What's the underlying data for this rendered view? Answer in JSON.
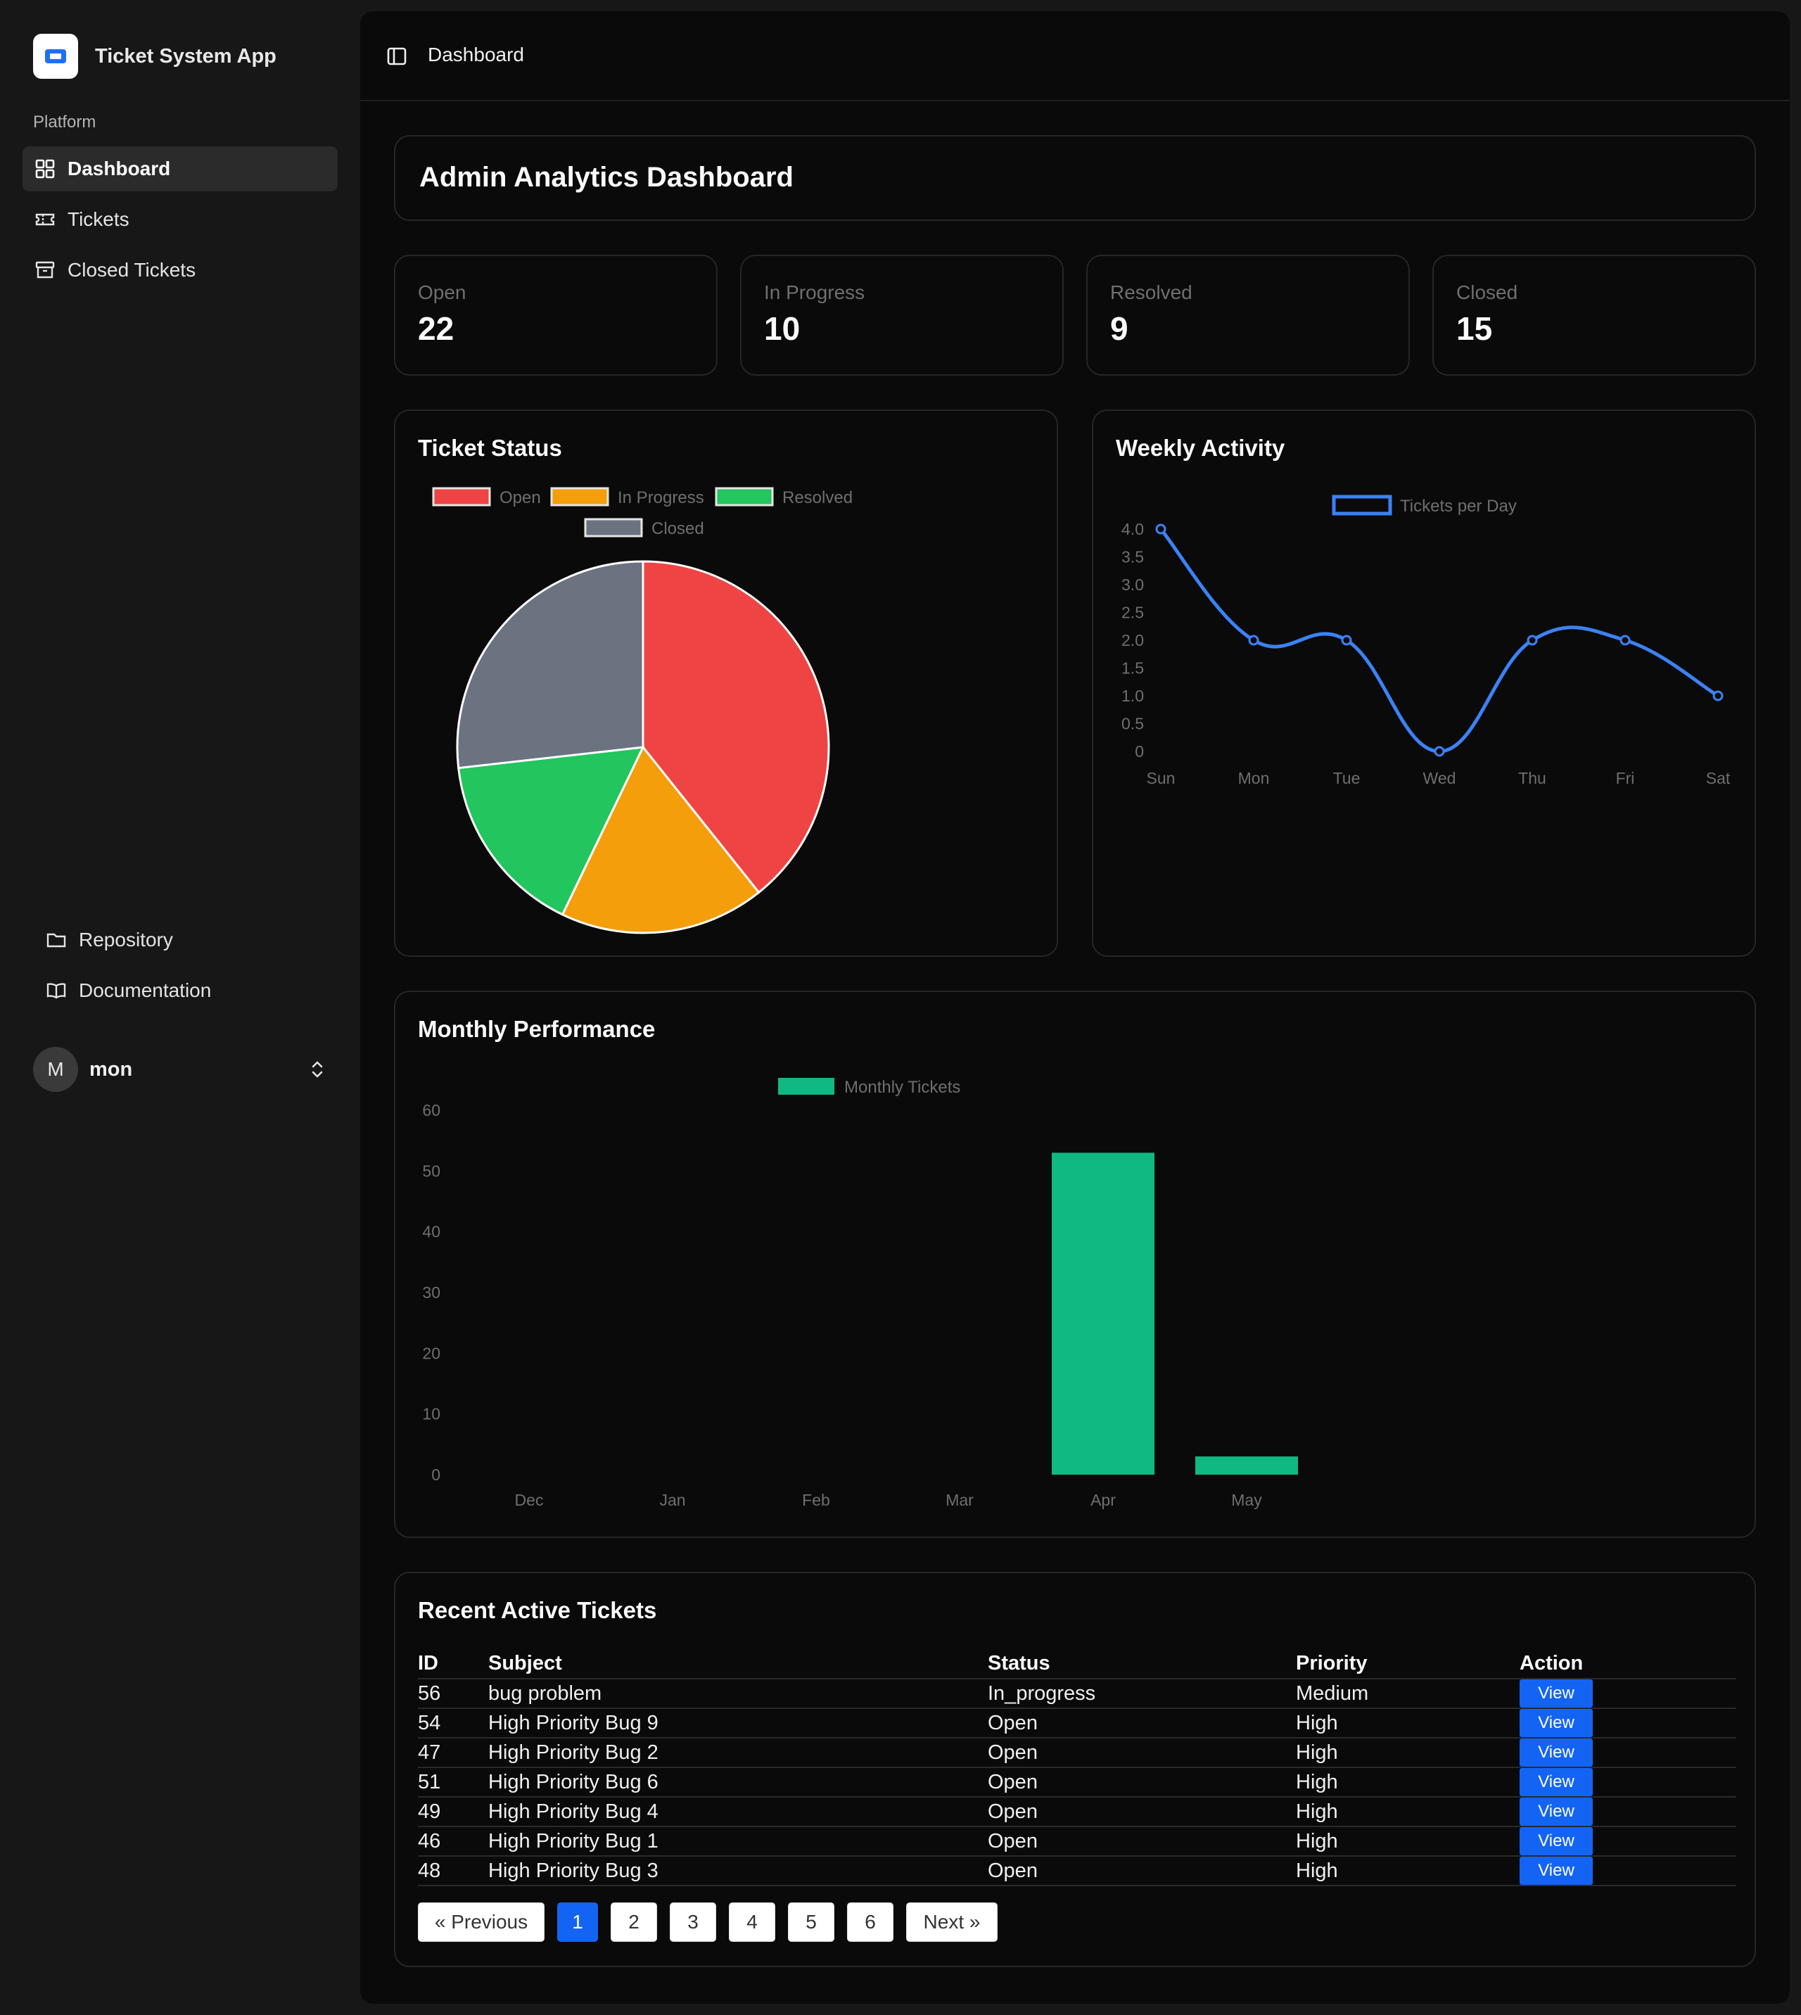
{
  "app": {
    "name": "Ticket System App"
  },
  "sidebar": {
    "section_label": "Platform",
    "items": [
      {
        "label": "Dashboard",
        "icon": "grid-icon",
        "active": true
      },
      {
        "label": "Tickets",
        "icon": "ticket-icon",
        "active": false
      },
      {
        "label": "Closed Tickets",
        "icon": "archive-icon",
        "active": false
      }
    ],
    "secondary": [
      {
        "label": "Repository",
        "icon": "folder-icon"
      },
      {
        "label": "Documentation",
        "icon": "book-icon"
      }
    ],
    "user": {
      "initial": "M",
      "name": "mon"
    }
  },
  "topbar": {
    "breadcrumb": "Dashboard"
  },
  "page": {
    "title": "Admin Analytics Dashboard"
  },
  "stats": [
    {
      "label": "Open",
      "value": "22"
    },
    {
      "label": "In Progress",
      "value": "10"
    },
    {
      "label": "Resolved",
      "value": "9"
    },
    {
      "label": "Closed",
      "value": "15"
    }
  ],
  "colors": {
    "open": "#ef4444",
    "in_progress": "#f59e0b",
    "resolved": "#22c55e",
    "closed": "#6b7280",
    "line": "#3b82f6",
    "bar": "#10b981",
    "accent": "#1464f4"
  },
  "chart_data": [
    {
      "type": "pie",
      "title": "Ticket Status",
      "categories": [
        "Open",
        "In Progress",
        "Resolved",
        "Closed"
      ],
      "values": [
        22,
        10,
        9,
        15
      ],
      "legend": "top"
    },
    {
      "type": "line",
      "title": "Weekly Activity",
      "series": [
        {
          "name": "Tickets per Day",
          "values": [
            4,
            2,
            2,
            0,
            2,
            2,
            1
          ]
        }
      ],
      "categories": [
        "Sun",
        "Mon",
        "Tue",
        "Wed",
        "Thu",
        "Fri",
        "Sat"
      ],
      "ylim": [
        0,
        4
      ],
      "yticks": [
        "0",
        "0.5",
        "1.0",
        "1.5",
        "2.0",
        "2.5",
        "3.0",
        "3.5",
        "4.0"
      ],
      "legend": "top"
    },
    {
      "type": "bar",
      "title": "Monthly Performance",
      "series": [
        {
          "name": "Monthly Tickets",
          "values": [
            0,
            0,
            0,
            0,
            53,
            3
          ]
        }
      ],
      "categories": [
        "Dec",
        "Jan",
        "Feb",
        "Mar",
        "Apr",
        "May"
      ],
      "ylim": [
        0,
        60
      ],
      "yticks": [
        "0",
        "10",
        "20",
        "30",
        "40",
        "50",
        "60"
      ],
      "legend": "top"
    }
  ],
  "recent": {
    "title": "Recent Active Tickets",
    "columns": [
      "ID",
      "Subject",
      "Status",
      "Priority",
      "Action"
    ],
    "rows": [
      {
        "id": "56",
        "subject": "bug problem",
        "status": "In_progress",
        "priority": "Medium",
        "action": "View"
      },
      {
        "id": "54",
        "subject": "High Priority Bug 9",
        "status": "Open",
        "priority": "High",
        "action": "View"
      },
      {
        "id": "47",
        "subject": "High Priority Bug 2",
        "status": "Open",
        "priority": "High",
        "action": "View"
      },
      {
        "id": "51",
        "subject": "High Priority Bug 6",
        "status": "Open",
        "priority": "High",
        "action": "View"
      },
      {
        "id": "49",
        "subject": "High Priority Bug 4",
        "status": "Open",
        "priority": "High",
        "action": "View"
      },
      {
        "id": "46",
        "subject": "High Priority Bug 1",
        "status": "Open",
        "priority": "High",
        "action": "View"
      },
      {
        "id": "48",
        "subject": "High Priority Bug 3",
        "status": "Open",
        "priority": "High",
        "action": "View"
      }
    ],
    "pagination": {
      "previous": "« Previous",
      "pages": [
        "1",
        "2",
        "3",
        "4",
        "5",
        "6"
      ],
      "current": "1",
      "next": "Next »"
    }
  }
}
